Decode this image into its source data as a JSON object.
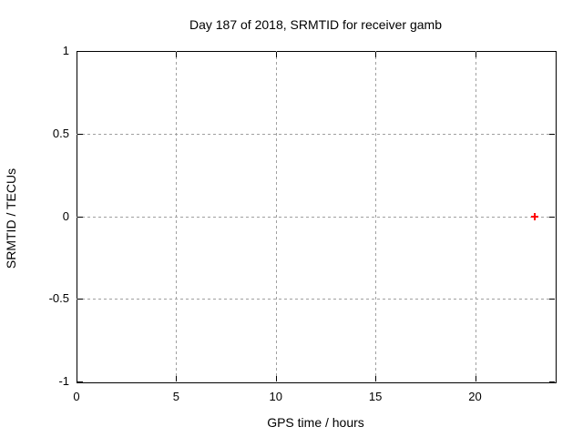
{
  "window": {
    "background": "#ffffff",
    "foreground": "#000000"
  },
  "chart_data": {
    "type": "scatter",
    "title": "Day 187 of 2018, SRMTID for receiver gamb",
    "xlabel": "GPS time / hours",
    "ylabel": "SRMTID / TECUs",
    "xlim": [
      0,
      24
    ],
    "ylim": [
      -1,
      1
    ],
    "x_ticks": [
      {
        "value": 0,
        "label": "0"
      },
      {
        "value": 5,
        "label": "5"
      },
      {
        "value": 10,
        "label": "10"
      },
      {
        "value": 15,
        "label": "15"
      },
      {
        "value": 20,
        "label": "20"
      }
    ],
    "y_ticks": [
      {
        "value": -1,
        "label": "-1"
      },
      {
        "value": -0.5,
        "label": "-0.5"
      },
      {
        "value": 0,
        "label": "0"
      },
      {
        "value": 0.5,
        "label": "0.5"
      },
      {
        "value": 1,
        "label": "1"
      }
    ],
    "grid": true,
    "grid_color": "#a0a0a0",
    "border_color": "#000000",
    "legend": "none",
    "series": [
      {
        "name": "SRMTID",
        "marker": "plus",
        "marker_color": "#ff0000",
        "points": [
          {
            "x": 23.0,
            "y": 0.0
          }
        ]
      }
    ]
  }
}
